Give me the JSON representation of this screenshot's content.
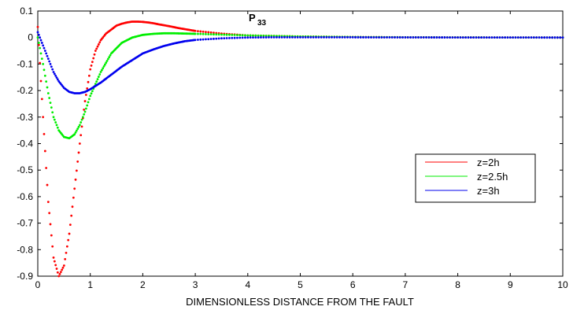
{
  "chart_data": {
    "type": "scatter",
    "title": "P",
    "title_subscript": "33",
    "xlabel": "DIMENSIONLESS DISTANCE FROM THE FAULT",
    "ylabel": "",
    "xlim": [
      0,
      10
    ],
    "ylim": [
      -0.9,
      0.1
    ],
    "xticks": [
      0,
      1,
      2,
      3,
      4,
      5,
      6,
      7,
      8,
      9,
      10
    ],
    "yticks": [
      0.1,
      0,
      -0.1,
      -0.2,
      -0.3,
      -0.4,
      -0.5,
      -0.6,
      -0.7,
      -0.8,
      -0.9
    ],
    "ytick_labels": [
      "0.1",
      "0",
      "-0.1",
      "-0.2",
      "-0.3",
      "-0.4",
      "-0.5",
      "-0.6",
      "-0.7",
      "-0.8",
      "-0.9"
    ],
    "grid": false,
    "legend_position": "right",
    "marker": "dot",
    "series": [
      {
        "name": "z=2h",
        "color": "#ff0000",
        "x": [
          0,
          0.1,
          0.2,
          0.3,
          0.4,
          0.5,
          0.6,
          0.7,
          0.8,
          0.9,
          1.0,
          1.1,
          1.2,
          1.3,
          1.4,
          1.5,
          1.6,
          1.7,
          1.8,
          1.9,
          2.0,
          2.1,
          2.2,
          2.3,
          2.5,
          2.7,
          3.0,
          3.5,
          4.0,
          5.0,
          6.0,
          7.0,
          8.0,
          9.0,
          10.0
        ],
        "y": [
          0.04,
          -0.3,
          -0.62,
          -0.83,
          -0.9,
          -0.86,
          -0.74,
          -0.57,
          -0.4,
          -0.24,
          -0.12,
          -0.05,
          -0.01,
          0.015,
          0.03,
          0.045,
          0.052,
          0.057,
          0.06,
          0.06,
          0.059,
          0.057,
          0.054,
          0.05,
          0.043,
          0.035,
          0.025,
          0.015,
          0.008,
          0.004,
          0.002,
          0.001,
          0.0005,
          0.0002,
          0.0
        ]
      },
      {
        "name": "z=2.5h",
        "color": "#00ee00",
        "x": [
          0,
          0.1,
          0.2,
          0.3,
          0.4,
          0.5,
          0.6,
          0.7,
          0.8,
          0.9,
          1.0,
          1.2,
          1.4,
          1.6,
          1.8,
          2.0,
          2.2,
          2.4,
          2.6,
          2.8,
          3.0,
          3.5,
          4.0,
          4.5,
          5.0,
          6.0,
          7.0,
          8.0,
          9.0,
          10.0
        ],
        "y": [
          0.0,
          -0.1,
          -0.21,
          -0.3,
          -0.35,
          -0.375,
          -0.38,
          -0.365,
          -0.33,
          -0.28,
          -0.22,
          -0.13,
          -0.06,
          -0.02,
          0.0,
          0.01,
          0.014,
          0.016,
          0.016,
          0.015,
          0.014,
          0.011,
          0.008,
          0.006,
          0.004,
          0.002,
          0.001,
          0.0005,
          0.0002,
          0.0
        ]
      },
      {
        "name": "z=3h",
        "color": "#0000ee",
        "x": [
          0,
          0.1,
          0.2,
          0.3,
          0.4,
          0.5,
          0.6,
          0.7,
          0.8,
          0.9,
          1.0,
          1.2,
          1.4,
          1.6,
          1.8,
          2.0,
          2.2,
          2.4,
          2.6,
          2.8,
          3.0,
          3.5,
          4.0,
          4.5,
          5.0,
          6.0,
          7.0,
          8.0,
          9.0,
          10.0
        ],
        "y": [
          0.02,
          -0.03,
          -0.08,
          -0.13,
          -0.165,
          -0.19,
          -0.205,
          -0.21,
          -0.21,
          -0.205,
          -0.195,
          -0.17,
          -0.14,
          -0.11,
          -0.085,
          -0.06,
          -0.045,
          -0.032,
          -0.022,
          -0.014,
          -0.009,
          -0.003,
          0.0,
          0.001,
          0.001,
          0.0008,
          0.0005,
          0.0003,
          0.0001,
          0.0
        ]
      }
    ]
  }
}
